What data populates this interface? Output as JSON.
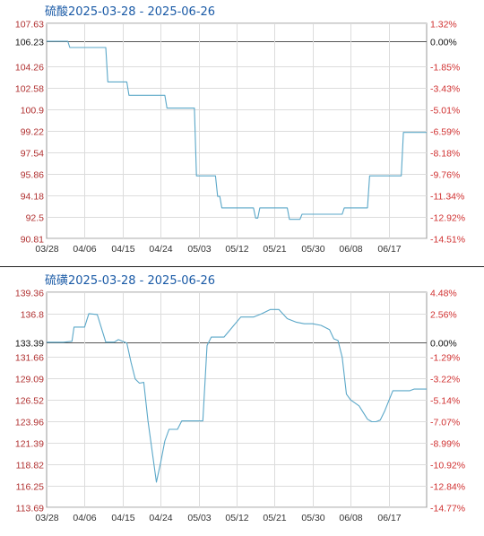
{
  "charts": [
    {
      "title": "硫酸2025-03-28 - 2025-06-26",
      "line_color": "#5aa7c8",
      "chart_data": {
        "type": "line",
        "title": "硫酸2025-03-28 - 2025-06-26",
        "x_tick_labels": [
          "03/28",
          "04/06",
          "04/15",
          "04/24",
          "05/03",
          "05/12",
          "05/21",
          "05/30",
          "06/08",
          "06/17"
        ],
        "y_tick_labels": [
          "107.63",
          "106.23",
          "104.26",
          "102.58",
          "100.9",
          "99.22",
          "97.54",
          "95.86",
          "94.18",
          "92.5",
          "90.81"
        ],
        "y_ticks": [
          107.63,
          106.23,
          104.26,
          102.58,
          100.9,
          99.22,
          97.54,
          95.86,
          94.18,
          92.5,
          90.81
        ],
        "right_tick_labels": [
          "1.32%",
          "0.00%",
          "-1.85%",
          "-3.43%",
          "-5.01%",
          "-6.59%",
          "-8.18%",
          "-9.76%",
          "-11.34%",
          "-12.92%",
          "-14.51%"
        ],
        "baseline": 106.23,
        "ylim": [
          90.81,
          107.63
        ],
        "xlim": [
          0,
          90
        ],
        "grid": true,
        "series": [
          {
            "x": [
              0,
              5,
              5.5,
              14,
              14.5,
              16,
              16.5,
              19,
              19.5,
              20,
              20.5,
              28,
              28.5,
              30,
              30.5,
              31,
              31.5,
              32,
              32.5,
              33,
              33.5,
              35,
              35.5,
              37,
              37.5,
              40,
              40.5,
              41,
              41.5,
              43,
              43.5,
              44.5,
              45,
              49,
              49.5,
              50,
              50.5,
              54,
              54.5,
              57,
              57.5,
              60,
              60.5,
              65,
              65.5,
              66,
              66.5,
              70,
              70.5,
              76,
              76.5,
              84,
              84.5,
              86,
              86.5,
              88,
              88.5,
              89,
              89.5,
              90
            ],
            "y": [
              106.23,
              106.23,
              105.74,
              105.74,
              103.05,
              103.05,
              103.05,
              103.05,
              102.0,
              102.0,
              102.0,
              102.0,
              101.0,
              101.0,
              101.0,
              101.0,
              101.0,
              101.0,
              101.0,
              101.0,
              101.0,
              101.0,
              95.7,
              95.7,
              95.7,
              95.7,
              94.1,
              94.1,
              93.2,
              93.2,
              93.2,
              93.2,
              93.2,
              93.2,
              92.4,
              92.4,
              93.2,
              93.2,
              93.2,
              93.2,
              92.3,
              92.3,
              92.7,
              92.7,
              92.7,
              92.7,
              92.7,
              92.7,
              93.2,
              93.2,
              95.7,
              95.7,
              99.1,
              99.1,
              99.1,
              99.1,
              99.1,
              99.1,
              99.1,
              99.1
            ]
          }
        ]
      }
    },
    {
      "title": "硫磺2025-03-28 - 2025-06-26",
      "line_color": "#5aa7c8",
      "chart_data": {
        "type": "line",
        "title": "硫磺2025-03-28 - 2025-06-26",
        "x_tick_labels": [
          "03/28",
          "04/06",
          "04/15",
          "04/24",
          "05/03",
          "05/12",
          "05/21",
          "05/30",
          "06/08",
          "06/17"
        ],
        "y_tick_labels": [
          "139.36",
          "136.8",
          "133.39",
          "131.66",
          "129.09",
          "126.52",
          "123.96",
          "121.39",
          "118.82",
          "116.25",
          "113.69"
        ],
        "y_ticks": [
          139.36,
          136.8,
          133.39,
          131.66,
          129.09,
          126.52,
          123.96,
          121.39,
          118.82,
          116.25,
          113.69
        ],
        "right_tick_labels": [
          "4.48%",
          "2.56%",
          "0.00%",
          "-1.29%",
          "-3.22%",
          "-5.14%",
          "-7.07%",
          "-8.99%",
          "-10.92%",
          "-12.84%",
          "-14.77%"
        ],
        "baseline": 133.39,
        "ylim": [
          113.69,
          139.36
        ],
        "xlim": [
          0,
          90
        ],
        "grid": true,
        "series": [
          {
            "x": [
              0,
              2,
              4,
              6,
              6.5,
              9,
              10,
              12,
              14,
              16,
              17,
              19,
              20,
              21,
              22,
              23,
              24,
              26,
              27,
              28,
              29,
              30,
              31,
              32,
              33,
              34,
              36,
              37,
              38,
              39,
              40,
              42,
              44,
              46,
              47,
              49,
              51,
              53,
              55,
              57,
              59,
              61,
              63,
              65,
              67,
              68,
              69,
              70,
              71,
              72,
              74,
              76,
              77,
              78,
              79,
              80,
              82,
              84,
              85,
              86,
              87,
              88,
              89,
              90
            ],
            "y": [
              133.39,
              133.39,
              133.39,
              133.5,
              135.2,
              135.2,
              136.8,
              136.7,
              133.4,
              133.4,
              133.7,
              133.3,
              131.0,
              129.0,
              128.5,
              128.6,
              124.0,
              116.7,
              119.0,
              121.6,
              123.0,
              123.0,
              123.0,
              124.0,
              124.0,
              124.0,
              124.0,
              124.0,
              133.0,
              134.0,
              134.0,
              134.0,
              135.2,
              136.4,
              136.4,
              136.4,
              136.8,
              137.3,
              137.3,
              136.2,
              135.8,
              135.6,
              135.6,
              135.4,
              134.9,
              133.8,
              133.6,
              131.6,
              127.2,
              126.5,
              125.8,
              124.2,
              123.9,
              123.9,
              124.1,
              125.1,
              127.6,
              127.6,
              127.6,
              127.6,
              127.8,
              127.8,
              127.8,
              127.8
            ]
          }
        ]
      }
    }
  ]
}
